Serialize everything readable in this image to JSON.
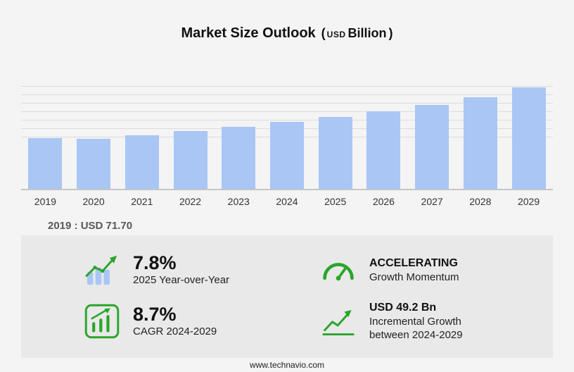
{
  "title": {
    "main": "Market Size Outlook",
    "open_paren": "(",
    "unit_small": "USD",
    "unit": "Billion",
    "close_paren": ")"
  },
  "chart_data": {
    "type": "bar",
    "title": "Market Size Outlook (USD Billion)",
    "categories": [
      "2019",
      "2020",
      "2021",
      "2022",
      "2023",
      "2024",
      "2025",
      "2026",
      "2027",
      "2028",
      "2029"
    ],
    "values": [
      71.7,
      71.0,
      76.5,
      82.5,
      88.0,
      95.2,
      102.6,
      110.5,
      119.5,
      130.0,
      144.4
    ],
    "unit": "USD Billion",
    "ylim": [
      0,
      150
    ],
    "grid": "horizontal",
    "legend": "none",
    "annotations": [
      "2019 : USD 71.70"
    ]
  },
  "stats": [
    {
      "icon": "yoy-growth-chart-icon",
      "value": "7.8%",
      "label": "2025 Year-over-Year"
    },
    {
      "icon": "speedometer-icon",
      "value": "ACCELERATING",
      "label": "Growth Momentum"
    },
    {
      "icon": "cagr-box-chart-icon",
      "value": "8.7%",
      "label": "CAGR 2024-2029"
    },
    {
      "icon": "incremental-growth-arrow-icon",
      "value": "USD 49.2 Bn",
      "label": "Incremental Growth between 2024-2029"
    }
  ],
  "footer": {
    "url": "www.technavio.com"
  },
  "colors": {
    "bar": "#a9c6f5",
    "accent_green": "#2aa52a",
    "panel_bg": "#e9e9e9",
    "page_bg": "#f4f4f4",
    "gridline": "#dcdcdc"
  }
}
